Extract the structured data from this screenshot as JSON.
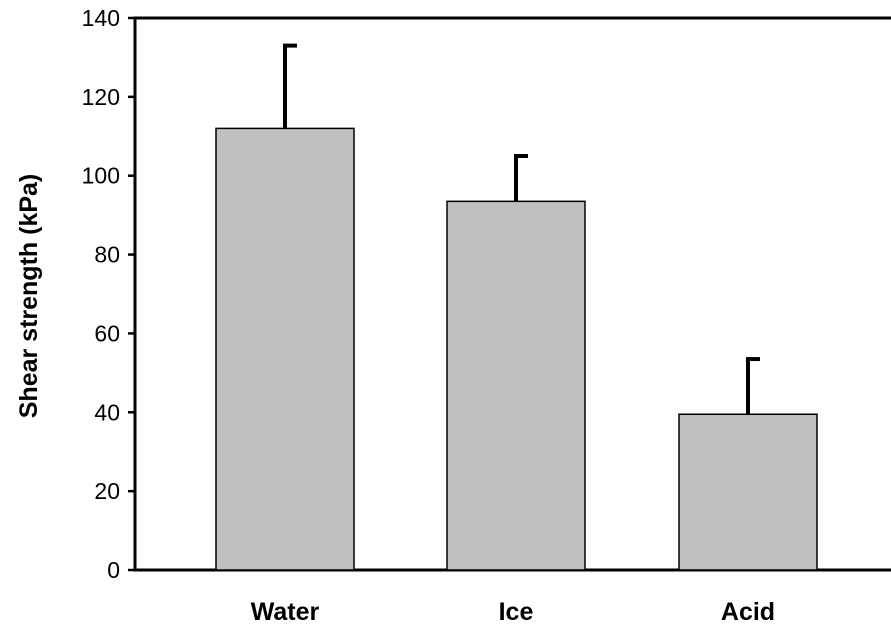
{
  "chart_data": {
    "type": "bar",
    "title": "",
    "xlabel": "",
    "ylabel": "Shear strength (kPa)",
    "categories": [
      "Water",
      "Ice",
      "Acid"
    ],
    "values": [
      112,
      93.5,
      39.5
    ],
    "error_bars": [
      21,
      11.5,
      14
    ],
    "error_bar_direction": "upper",
    "ylim": [
      0,
      140
    ],
    "yticks": [
      "0",
      "20",
      "40",
      "60",
      "80",
      "100",
      "120",
      "140"
    ],
    "grid": false,
    "legend": "none",
    "colors": {
      "bar_fill": "#c0c0c0",
      "bar_stroke": "#000000",
      "error_bar": "#000000",
      "axis": "#000000"
    }
  }
}
